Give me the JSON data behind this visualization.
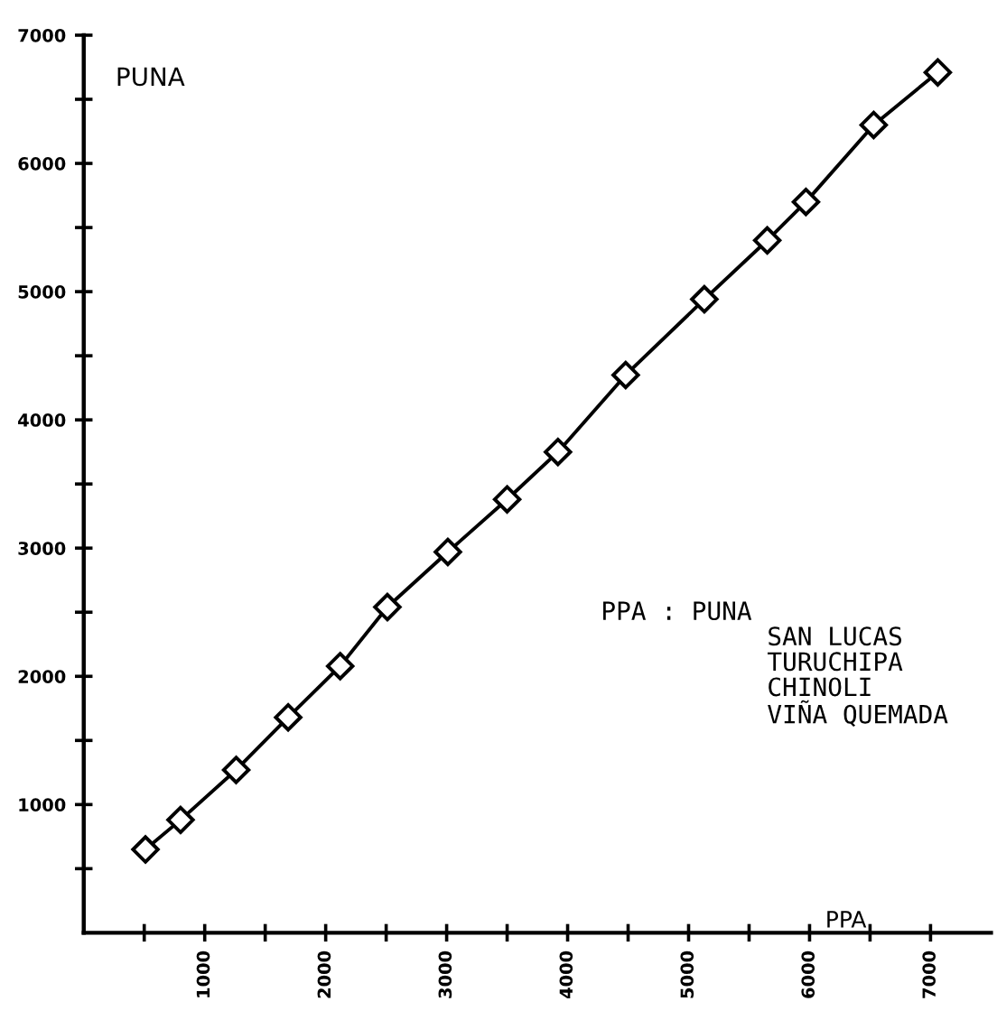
{
  "chart_data": {
    "type": "line",
    "xlabel": "PPA",
    "annotations": [
      "PUNA",
      "PPA : PUNA\n           SAN LUCAS\n           TURUCHIPA\n           CHINOLI\n           VIÑA QUEMADA"
    ],
    "series": [
      {
        "color": "#000000",
        "marker": "diamond",
        "line_style": "solid",
        "x": [
          510,
          800,
          1260,
          1690,
          2120,
          2510,
          3010,
          3500,
          3920,
          4480,
          5130,
          5650,
          5970,
          6530,
          7060
        ],
        "values": [
          650,
          880,
          1270,
          1680,
          2080,
          2540,
          2970,
          3380,
          3750,
          4350,
          4940,
          5400,
          5700,
          6300,
          6710
        ]
      }
    ],
    "xlim": [
      0,
      7500
    ],
    "ylim": [
      0,
      7000
    ],
    "xticks": [
      {
        "value": 500,
        "label": null
      },
      1000,
      {
        "value": 1500,
        "label": null
      },
      2000,
      {
        "value": 2500,
        "label": null
      },
      3000,
      {
        "value": 3500,
        "label": null
      },
      4000,
      {
        "value": 4500,
        "label": null
      },
      5000,
      {
        "value": 5500,
        "label": null
      },
      6000,
      {
        "value": 6500,
        "label": null
      },
      7000
    ],
    "yticks": [
      {
        "value": 500,
        "label": null
      },
      1000,
      {
        "value": 1500,
        "label": null
      },
      2000,
      {
        "value": 2500,
        "label": null
      },
      3000,
      {
        "value": 3500,
        "label": null
      },
      4000,
      {
        "value": 4500,
        "label": null
      },
      5000,
      {
        "value": 5500,
        "label": null
      },
      6000,
      {
        "value": 6500,
        "label": null
      },
      7000
    ],
    "grid": false,
    "legend": false
  }
}
